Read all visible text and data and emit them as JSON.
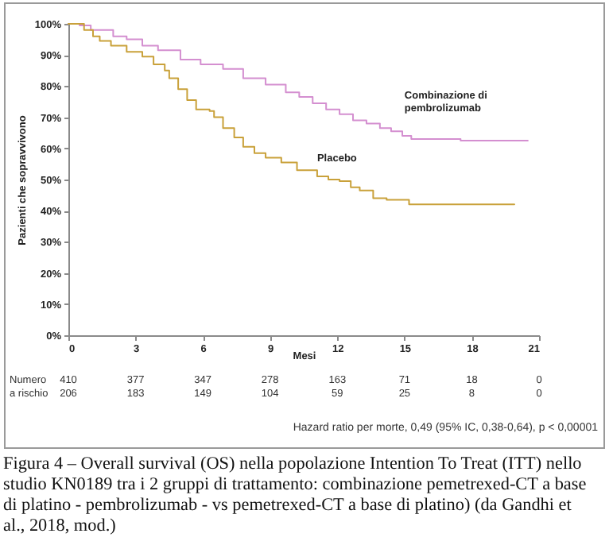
{
  "chart_data": [
    {
      "type": "step",
      "ylabel": "Pazienti che sopravvivono",
      "xlabel": "Mesi",
      "xlim": [
        0,
        21
      ],
      "xticks": [
        0,
        3,
        6,
        9,
        12,
        15,
        18,
        21
      ],
      "ylim": [
        0,
        100
      ],
      "yticks": [
        {
          "value": 0,
          "label": "0%"
        },
        {
          "value": 10,
          "label": "10%"
        },
        {
          "value": 20,
          "label": "20%"
        },
        {
          "value": 30,
          "label": "30%"
        },
        {
          "value": 40,
          "label": "40%"
        },
        {
          "value": 50,
          "label": "50%"
        },
        {
          "value": 60,
          "label": "60%"
        },
        {
          "value": 70,
          "label": "70%"
        },
        {
          "value": 80,
          "label": "80%"
        },
        {
          "value": 90,
          "label": "90%"
        },
        {
          "value": 100,
          "label": "100%"
        }
      ],
      "grid": false,
      "series": [
        {
          "name": "Combinazione di pembrolizumab",
          "color": "#d48fd0",
          "x": [
            0,
            0.5,
            1.0,
            2.0,
            2.6,
            3.3,
            4.0,
            5.0,
            5.9,
            6.9,
            7.8,
            8.8,
            9.7,
            10.3,
            10.9,
            11.5,
            12.1,
            12.7,
            13.3,
            13.9,
            14.4,
            14.9,
            15.3,
            17.5,
            20.5
          ],
          "values": [
            100,
            99.5,
            98,
            96,
            95,
            93,
            91.5,
            88.5,
            87,
            85.5,
            82.5,
            80.5,
            78,
            76.5,
            74.5,
            72.5,
            71,
            69,
            68,
            66.5,
            65.5,
            64,
            63,
            62.5,
            62.5
          ]
        },
        {
          "name": "Placebo",
          "color": "#c9a13a",
          "x": [
            0,
            0.7,
            1.1,
            1.4,
            1.9,
            2.6,
            3.3,
            3.8,
            4.3,
            4.5,
            4.9,
            5.3,
            5.7,
            6.3,
            6.5,
            6.9,
            7.4,
            7.8,
            8.3,
            8.8,
            9.5,
            10.2,
            11.1,
            11.6,
            12.1,
            12.6,
            13.0,
            13.6,
            14.2,
            15.2,
            19.9
          ],
          "values": [
            100,
            98,
            96,
            94.5,
            93,
            91,
            89.5,
            87,
            85,
            82.5,
            79,
            75.5,
            72.5,
            72,
            70,
            66.5,
            63.5,
            60.5,
            58.5,
            57,
            55.5,
            53,
            51,
            50,
            49.5,
            47.5,
            46.5,
            44,
            43.5,
            42,
            42
          ]
        }
      ],
      "annotations": [
        "Hazard ratio per morte, 0,49 (95% IC, 0,38-0,64), p < 0,00001",
        "Figura 4 – Overall survival (OS) nella popolazione Intention To Treat (ITT) nello studio KN0189 tra i 2 gruppi di trattamento: combinazione pemetrexed-CT a base di platino - pembrolizumab - vs pemetrexed-CT a base di platino) (da Gandhi et al., 2018, mod.)"
      ]
    },
    {
      "type": "other",
      "annotations": [
        "Numero a rischio",
        "410",
        "377",
        "347",
        "278",
        "163",
        "71",
        "18",
        "0",
        "206",
        "183",
        "149",
        "104",
        "59",
        "25",
        "8",
        "0"
      ]
    }
  ]
}
